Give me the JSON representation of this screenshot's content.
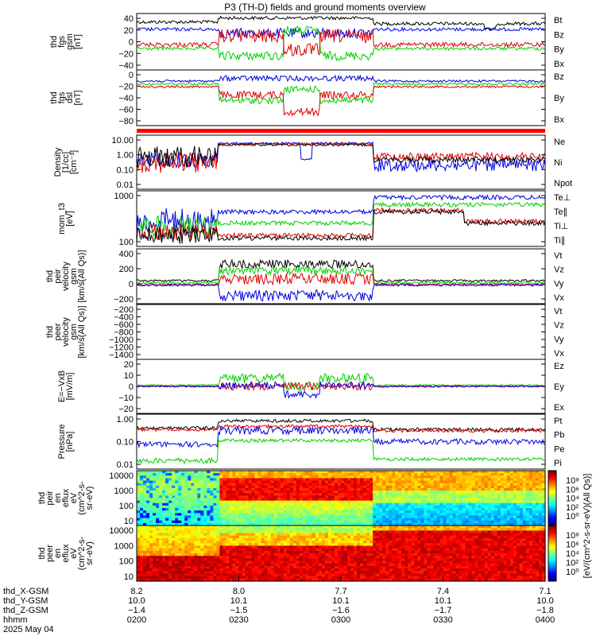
{
  "title": "P3 (TH-D) fields and ground moments overview",
  "colors": {
    "black": "#000000",
    "red": "#e00000",
    "green": "#00d000",
    "blue": "#0000e0"
  },
  "chart_data": [
    {
      "id": "fgs",
      "type": "line",
      "ylabel": [
        "thd",
        "fgs",
        "gsm",
        "[nT]"
      ],
      "yticks": [
        "40",
        "20",
        "0",
        "−20",
        "−40"
      ],
      "legend": [
        {
          "name": "Bt",
          "color": "black"
        },
        {
          "name": "Bz",
          "color": "red"
        },
        {
          "name": "By",
          "color": "green"
        },
        {
          "name": "Bx",
          "color": "blue"
        }
      ]
    },
    {
      "id": "fgs_dsl",
      "type": "line",
      "ylabel": [
        "thd",
        "fgs",
        "dsl",
        "[nT]"
      ],
      "yticks": [
        "0",
        "−20",
        "−40",
        "−60",
        "−80"
      ],
      "legend": [
        {
          "name": "Bz",
          "color": "red"
        },
        {
          "name": "By",
          "color": "green"
        },
        {
          "name": "Bx",
          "color": "blue"
        }
      ]
    },
    {
      "id": "density",
      "type": "line",
      "log": true,
      "ylabel": [
        "Density",
        "[1/cc]",
        "[cm⁻³]"
      ],
      "yticks": [
        "10.00",
        "1.00",
        "0.10",
        "0.01"
      ],
      "legend": [
        {
          "name": "Ne",
          "color": "red"
        },
        {
          "name": "Ni",
          "color": "black"
        },
        {
          "name": "Npot",
          "color": "blue"
        }
      ]
    },
    {
      "id": "temp",
      "type": "line",
      "log": true,
      "ylabel": [
        "mom_t3",
        "[eV]"
      ],
      "yticks": [
        "1000",
        "100"
      ],
      "legend": [
        {
          "name": "Te⊥",
          "color": "red"
        },
        {
          "name": "Te∥",
          "color": "black"
        },
        {
          "name": "Ti⊥",
          "color": "blue"
        },
        {
          "name": "Ti∥",
          "color": "green"
        }
      ]
    },
    {
      "id": "vi",
      "type": "line",
      "ylabel": [
        "thd",
        "peir",
        "velocity",
        "gsm",
        "[km/s(All Qs)]"
      ],
      "yticks": [
        "400",
        "200",
        "0",
        "−200"
      ],
      "legend": [
        {
          "name": "Vt",
          "color": "black"
        },
        {
          "name": "Vz",
          "color": "red"
        },
        {
          "name": "Vy",
          "color": "green"
        },
        {
          "name": "Vx",
          "color": "blue"
        }
      ]
    },
    {
      "id": "ve",
      "type": "line",
      "ylabel": [
        "thd",
        "peer",
        "velocity",
        "gsm",
        "[km/s(All Qs)]"
      ],
      "yticks": [
        "−200",
        "−400",
        "−600",
        "−800",
        "−1000",
        "−1200",
        "−1400"
      ],
      "legend": [
        {
          "name": "Vt",
          "color": "black"
        },
        {
          "name": "Vz",
          "color": "red"
        },
        {
          "name": "Vy",
          "color": "green"
        },
        {
          "name": "Vx",
          "color": "blue"
        }
      ]
    },
    {
      "id": "efield",
      "type": "line",
      "ylabel": [
        "E=−VxB",
        "[mV/m]"
      ],
      "yticks": [
        "20",
        "10",
        "0",
        "−10",
        "−20"
      ],
      "legend": [
        {
          "name": "Ez",
          "color": "red"
        },
        {
          "name": "Ey",
          "color": "green"
        },
        {
          "name": "Ex",
          "color": "blue"
        }
      ]
    },
    {
      "id": "pressure",
      "type": "line",
      "log": true,
      "ylabel": [
        "Pressure",
        "[nPa]"
      ],
      "yticks": [
        "1.00",
        "0.10",
        "0.01"
      ],
      "legend": [
        {
          "name": "Pt",
          "color": "black"
        },
        {
          "name": "Pb",
          "color": "red"
        },
        {
          "name": "Pe",
          "color": "green"
        },
        {
          "name": "Pi",
          "color": "blue"
        }
      ]
    },
    {
      "id": "ion_spec",
      "type": "heatmap",
      "ylabel": [
        "thd",
        "peir",
        "en",
        "eflux",
        "eV",
        "(cm^2-s-",
        "sr-eV)"
      ],
      "yticks": [
        "10000",
        "1000",
        "100",
        "10"
      ]
    },
    {
      "id": "el_spec",
      "type": "heatmap",
      "ylabel": [
        "thd",
        "peer",
        "en",
        "eflux",
        "eV",
        "(cm^2-s-",
        "sr-eV)"
      ],
      "yticks": [
        "10000",
        "1000",
        "100",
        "10"
      ]
    }
  ],
  "colorbar": {
    "label": "[eV/(cm^2-s-sr-eV)(All Qs)]",
    "upper_ticks": [
      "10⁸",
      "10⁶",
      "10⁴",
      "10²",
      "10⁰"
    ],
    "lower_ticks": [
      "10⁸",
      "10⁶",
      "10⁴",
      "10²",
      "10⁰"
    ]
  },
  "xaxis": {
    "row_labels": [
      "thd_X-GSM",
      "thd_Y-GSM",
      "thd_Z-GSM",
      "hhmm",
      "2025 May 04"
    ],
    "ticks": [
      {
        "x": "8.2",
        "y": "10.0",
        "z": "−1.4",
        "t": "0200"
      },
      {
        "x": "8.0",
        "y": "10.1",
        "z": "−1.5",
        "t": "0230"
      },
      {
        "x": "7.7",
        "y": "10.1",
        "z": "−1.6",
        "t": "0300"
      },
      {
        "x": "7.4",
        "y": "10.1",
        "z": "−1.7",
        "t": "0330"
      },
      {
        "x": "7.1",
        "y": "10.0",
        "z": "−1.8",
        "t": "0400"
      }
    ]
  }
}
